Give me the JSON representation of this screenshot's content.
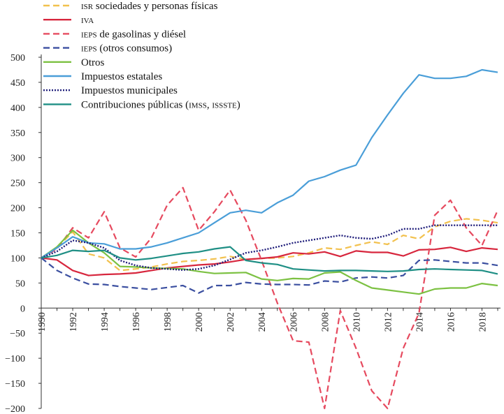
{
  "chart_data": {
    "type": "line",
    "title": "",
    "xlabel": "",
    "ylabel": "",
    "ylim": [
      -200,
      500
    ],
    "xlim": [
      1990,
      2019
    ],
    "yticks": [
      "500",
      "450",
      "400",
      "350",
      "300",
      "250",
      "200",
      "150",
      "100",
      "50",
      "0",
      "−50",
      "−100",
      "−150",
      "−200"
    ],
    "ytick_values": [
      500,
      450,
      400,
      350,
      300,
      250,
      200,
      150,
      100,
      50,
      0,
      -50,
      -100,
      -150,
      -200
    ],
    "xticks": [
      "1990",
      "1992",
      "1994",
      "1996",
      "1998",
      "2000",
      "2002",
      "2004",
      "2006",
      "2008",
      "2010",
      "2012",
      "2014",
      "2016",
      "2018"
    ],
    "xtick_values": [
      1990,
      1992,
      1994,
      1996,
      1998,
      2000,
      2002,
      2004,
      2006,
      2008,
      2010,
      2012,
      2014,
      2016,
      2018
    ],
    "x": [
      1990,
      1991,
      1992,
      1993,
      1994,
      1995,
      1996,
      1997,
      1998,
      1999,
      2000,
      2001,
      2002,
      2003,
      2004,
      2005,
      2006,
      2007,
      2008,
      2009,
      2010,
      2011,
      2012,
      2013,
      2014,
      2015,
      2016,
      2017,
      2018,
      2019
    ],
    "series": [
      {
        "name": "isr",
        "name_rest": " sociedades y personas físicas",
        "color": "#f2c14e",
        "dash": "dashed",
        "values": [
          100,
          120,
          152,
          108,
          100,
          75,
          78,
          82,
          88,
          93,
          95,
          98,
          103,
          97,
          99,
          100,
          103,
          110,
          120,
          117,
          125,
          132,
          127,
          145,
          138,
          162,
          173,
          178,
          175,
          170
        ]
      },
      {
        "name": "iva",
        "name_rest": "",
        "color": "#d7263d",
        "dash": "solid",
        "values": [
          100,
          96,
          75,
          65,
          67,
          68,
          70,
          75,
          80,
          83,
          86,
          88,
          92,
          97,
          99,
          102,
          110,
          108,
          112,
          103,
          114,
          111,
          111,
          104,
          116,
          117,
          121,
          113,
          120,
          117
        ]
      },
      {
        "name": "ieps",
        "name_rest": " de gasolinas y diésel",
        "color": "#e64a5f",
        "dash": "dashed",
        "values": [
          100,
          118,
          160,
          140,
          192,
          120,
          102,
          140,
          205,
          240,
          155,
          192,
          235,
          175,
          95,
          10,
          -65,
          -68,
          -200,
          -5,
          -80,
          -165,
          -200,
          -80,
          -10,
          185,
          215,
          160,
          125,
          195
        ]
      },
      {
        "name": "ieps",
        "name_rest": " (otros consumos)",
        "color": "#3b4fa0",
        "dash": "dashed",
        "values": [
          100,
          75,
          60,
          48,
          47,
          43,
          40,
          37,
          41,
          45,
          30,
          45,
          45,
          51,
          48,
          47,
          47,
          46,
          54,
          52,
          60,
          62,
          60,
          65,
          95,
          96,
          93,
          90,
          90,
          85
        ]
      },
      {
        "name": "Otros",
        "name_rest": "",
        "color": "#7cc142",
        "dash": "solid",
        "values": [
          100,
          122,
          155,
          130,
          110,
          83,
          82,
          80,
          79,
          78,
          73,
          69,
          70,
          71,
          58,
          55,
          59,
          58,
          70,
          72,
          55,
          40,
          36,
          32,
          28,
          38,
          40,
          40,
          49,
          45
        ]
      },
      {
        "name": "Impuestos estatales",
        "name_rest": "",
        "color": "#4a9ed8",
        "dash": "solid",
        "values": [
          100,
          120,
          142,
          130,
          128,
          118,
          118,
          122,
          130,
          140,
          150,
          170,
          190,
          195,
          190,
          210,
          225,
          253,
          262,
          275,
          285,
          340,
          385,
          428,
          465,
          458,
          458,
          462,
          475,
          470
        ]
      },
      {
        "name": "Impuestos municipales",
        "name_rest": "",
        "color": "#1f1d7a",
        "dash": "dotted",
        "values": [
          100,
          113,
          135,
          130,
          120,
          95,
          85,
          80,
          78,
          76,
          78,
          85,
          97,
          110,
          115,
          122,
          130,
          135,
          140,
          145,
          140,
          138,
          145,
          158,
          158,
          165,
          165,
          165,
          165,
          165
        ]
      },
      {
        "name": "Contribuciones públicas (",
        "name_rest": ")",
        "name_sc": "imss, issste",
        "color": "#1f8f85",
        "dash": "solid",
        "values": [
          100,
          105,
          115,
          113,
          115,
          100,
          96,
          99,
          104,
          109,
          112,
          118,
          122,
          95,
          90,
          87,
          78,
          76,
          74,
          75,
          75,
          74,
          73,
          74,
          77,
          78,
          77,
          76,
          75,
          68
        ]
      }
    ]
  }
}
